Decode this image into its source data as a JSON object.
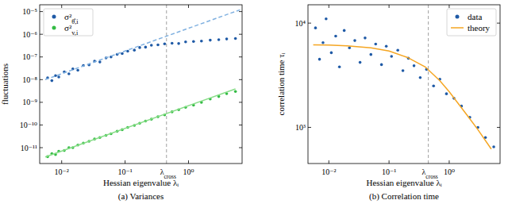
{
  "chart_data": [
    {
      "type": "scatter",
      "caption": "(a) Variances",
      "x_label": "Hessian eigenvalue λᵢ",
      "y_label": "fluctuations",
      "log": true,
      "legend": "upper left",
      "xlim": [
        0.0045,
        7
      ],
      "ylim": [
        2e-12,
        2e-05
      ],
      "xticks": [
        {
          "value": 0.01,
          "label": "10⁻²"
        },
        {
          "value": 0.1,
          "label": "10⁻¹"
        },
        {
          "value": 1,
          "label": "10⁰"
        }
      ],
      "yticks": [
        {
          "value": 1e-11,
          "label": "10⁻¹¹"
        },
        {
          "value": 1e-10,
          "label": "10⁻¹⁰"
        },
        {
          "value": 1e-09,
          "label": "10⁻⁹"
        },
        {
          "value": 1e-08,
          "label": "10⁻⁸"
        },
        {
          "value": 1e-07,
          "label": "10⁻⁷"
        },
        {
          "value": 1e-06,
          "label": "10⁻⁶"
        },
        {
          "value": 1e-05,
          "label": "10⁻⁵"
        }
      ],
      "annotations": [
        {
          "text": "λcross",
          "x": 0.45
        }
      ],
      "series": [
        {
          "name": "σ²θ̂,i",
          "color": "#1f5aa6",
          "marker": "circle",
          "x": [
            0.006,
            0.007,
            0.008,
            0.009,
            0.011,
            0.013,
            0.015,
            0.018,
            0.022,
            0.027,
            0.033,
            0.04,
            0.05,
            0.06,
            0.075,
            0.09,
            0.11,
            0.14,
            0.17,
            0.21,
            0.26,
            0.33,
            0.42,
            0.55,
            0.7,
            0.9,
            1.2,
            1.6,
            2.2,
            3,
            4,
            5.5
          ],
          "values": [
            1.2e-08,
            9e-09,
            1.5e-08,
            1.3e-08,
            2.2e-08,
            1.8e-08,
            3e-08,
            2.6e-08,
            4.2e-08,
            4.5e-08,
            6.5e-08,
            6e-08,
            9e-08,
            1e-07,
            1.3e-07,
            1.4e-07,
            1.8e-07,
            2e-07,
            2.6e-07,
            2.7e-07,
            3.3e-07,
            3.4e-07,
            3.8e-07,
            4e-07,
            3.9e-07,
            4.6e-07,
            4.8e-07,
            5e-07,
            5.5e-07,
            5.8e-07,
            6.2e-07,
            6.5e-07
          ]
        },
        {
          "name": "σ²v,i",
          "color": "#33bb44",
          "marker": "circle",
          "x": [
            0.006,
            0.007,
            0.008,
            0.009,
            0.011,
            0.013,
            0.015,
            0.018,
            0.022,
            0.027,
            0.033,
            0.04,
            0.05,
            0.06,
            0.075,
            0.09,
            0.11,
            0.14,
            0.17,
            0.21,
            0.26,
            0.33,
            0.42,
            0.55,
            0.7,
            0.9,
            1.2,
            1.6,
            2.2,
            3,
            4,
            5.5
          ],
          "values": [
            4e-12,
            5.5e-12,
            5e-12,
            7e-12,
            7.5e-12,
            1e-11,
            1e-11,
            1.3e-11,
            1.6e-11,
            1.9e-11,
            2.4e-11,
            2.8e-11,
            3.5e-11,
            4.1e-11,
            5.3e-11,
            6.2e-11,
            7.8e-11,
            9.6e-11,
            1.2e-10,
            1.5e-10,
            1.8e-10,
            2.3e-10,
            2.8e-10,
            3.8e-10,
            4.7e-10,
            6e-10,
            7.5e-10,
            1e-09,
            1.4e-09,
            1.8e-09,
            2.4e-09,
            3e-09
          ]
        },
        {
          "type": "line",
          "line_style": "dashed",
          "color": "#7fb0e0",
          "x": [
            0.0055,
            6.5
          ],
          "values": [
            1e-08,
            1.2e-05
          ]
        },
        {
          "type": "line",
          "line_style": "solid",
          "color": "#88dd88",
          "x": [
            0.0055,
            5.5
          ],
          "values": [
            3.9e-12,
            3.9e-09
          ]
        }
      ]
    },
    {
      "type": "scatter",
      "caption": "(b) Correlation time",
      "x_label": "Hessian eigenvalue λᵢ",
      "y_label": "correlation time τᵢ",
      "log": true,
      "legend": "upper right",
      "xlim": [
        0.0045,
        7
      ],
      "ylim": [
        450,
        15000
      ],
      "xticks": [
        {
          "value": 0.01,
          "label": "10⁻²"
        },
        {
          "value": 0.1,
          "label": "10⁻¹"
        },
        {
          "value": 1,
          "label": "10⁰"
        }
      ],
      "yticks": [
        {
          "value": 1000,
          "label": "10³"
        },
        {
          "value": 10000,
          "label": "10⁴"
        }
      ],
      "annotations": [
        {
          "text": "λcross",
          "x": 0.45
        }
      ],
      "series": [
        {
          "name": "data",
          "color": "#1f5aa6",
          "marker": "circle",
          "x": [
            0.006,
            0.007,
            0.008,
            0.009,
            0.011,
            0.013,
            0.015,
            0.018,
            0.022,
            0.027,
            0.033,
            0.04,
            0.05,
            0.06,
            0.075,
            0.09,
            0.11,
            0.14,
            0.17,
            0.21,
            0.26,
            0.33,
            0.42,
            0.55,
            0.7,
            0.9,
            1.2,
            1.6,
            2.2,
            3,
            4,
            5.5
          ],
          "values": [
            9000,
            4500,
            6500,
            11000,
            5200,
            7500,
            3800,
            8500,
            5800,
            6800,
            4200,
            7200,
            5000,
            6300,
            4000,
            6000,
            4800,
            5500,
            3500,
            4600,
            3900,
            3000,
            3600,
            2500,
            2900,
            2100,
            1900,
            1600,
            1250,
            1000,
            800,
            650
          ]
        },
        {
          "name": "theory",
          "type": "line",
          "line_style": "solid",
          "color": "#f5a623",
          "x": [
            0.0055,
            0.01,
            0.02,
            0.05,
            0.1,
            0.2,
            0.4,
            0.7,
            1,
            2,
            3,
            5
          ],
          "values": [
            6200,
            6150,
            6050,
            5800,
            5400,
            4700,
            3800,
            2800,
            2200,
            1300,
            950,
            620
          ]
        }
      ]
    }
  ]
}
